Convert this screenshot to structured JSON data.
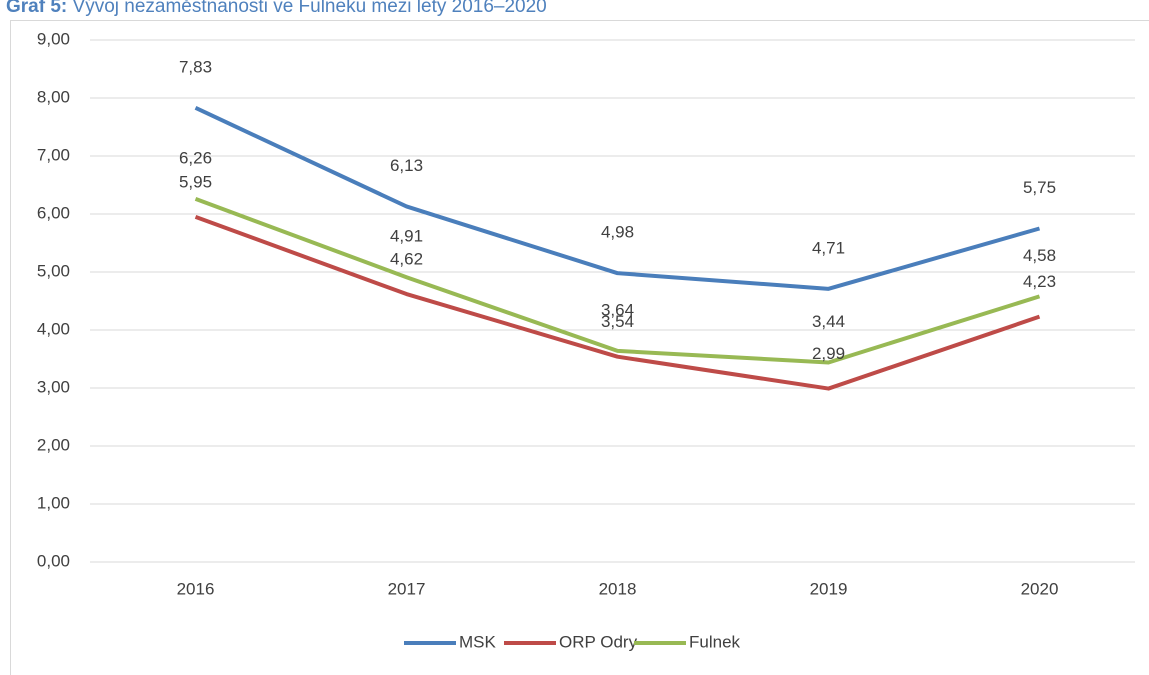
{
  "chart_data": {
    "type": "line",
    "title_label": "Graf 5:",
    "title": "Vývoj nezaměstnanosti ve Fulneku mezi lety 2016–2020",
    "categories": [
      "2016",
      "2017",
      "2018",
      "2019",
      "2020"
    ],
    "series": [
      {
        "name": "MSK",
        "color": "#4a7ebb",
        "values": [
          7.83,
          6.13,
          4.98,
          4.71,
          5.75
        ],
        "value_labels": [
          "7,83",
          "6,13",
          "4,98",
          "4,71",
          "5,75"
        ]
      },
      {
        "name": "ORP Odry",
        "color": "#be4b48",
        "values": [
          5.95,
          4.62,
          3.54,
          2.99,
          4.23
        ],
        "value_labels": [
          "5,95",
          "4,62",
          "3,54",
          "2,99",
          "4,23"
        ]
      },
      {
        "name": "Fulnek",
        "color": "#98b954",
        "values": [
          6.26,
          4.91,
          3.64,
          3.44,
          4.58
        ],
        "value_labels": [
          "6,26",
          "4,91",
          "3,64",
          "3,44",
          "4,58"
        ]
      }
    ],
    "ylim": [
      0,
      9
    ],
    "yticks": [
      {
        "value": 0,
        "label": "0,00"
      },
      {
        "value": 1,
        "label": "1,00"
      },
      {
        "value": 2,
        "label": "2,00"
      },
      {
        "value": 3,
        "label": "3,00"
      },
      {
        "value": 4,
        "label": "4,00"
      },
      {
        "value": 5,
        "label": "5,00"
      },
      {
        "value": 6,
        "label": "6,00"
      },
      {
        "value": 7,
        "label": "7,00"
      },
      {
        "value": 8,
        "label": "8,00"
      },
      {
        "value": 9,
        "label": "9,00"
      }
    ],
    "grid": true,
    "legend": "bottom"
  }
}
